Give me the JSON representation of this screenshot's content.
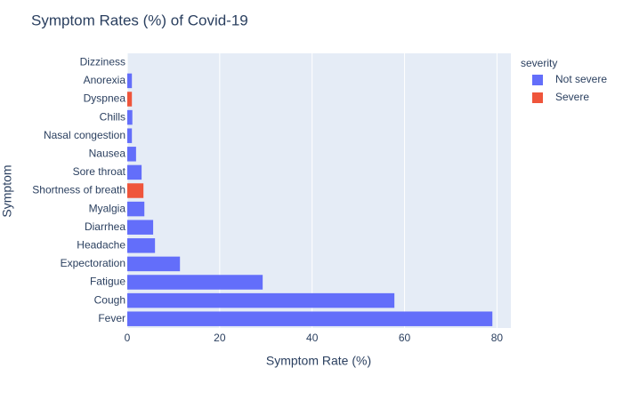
{
  "chart_data": {
    "type": "bar",
    "orientation": "h",
    "title": "Symptom Rates (%) of Covid-19",
    "x_label": "Symptom Rate (%)",
    "y_label": "Symptom",
    "legend_title": "severity",
    "categories": [
      "Fever",
      "Cough",
      "Fatigue",
      "Expectoration",
      "Headache",
      "Diarrhea",
      "Myalgia",
      "Shortness of breath",
      "Sore throat",
      "Nausea",
      "Nasal congestion",
      "Chills",
      "Dyspnea",
      "Anorexia",
      "Dizziness"
    ],
    "series": [
      {
        "name": "Not severe",
        "color": "#636efa",
        "values": [
          79.0,
          57.8,
          29.3,
          11.4,
          6.0,
          5.6,
          3.7,
          null,
          3.1,
          1.9,
          1.0,
          1.1,
          null,
          1.0,
          0
        ]
      },
      {
        "name": "Severe",
        "color": "#ef553b",
        "values": [
          null,
          null,
          null,
          null,
          null,
          null,
          null,
          3.5,
          null,
          null,
          null,
          null,
          1.0,
          null,
          null
        ]
      }
    ],
    "xlim": [
      0,
      83
    ],
    "xticks": [
      0,
      20,
      40,
      60,
      80
    ],
    "grid": true
  }
}
